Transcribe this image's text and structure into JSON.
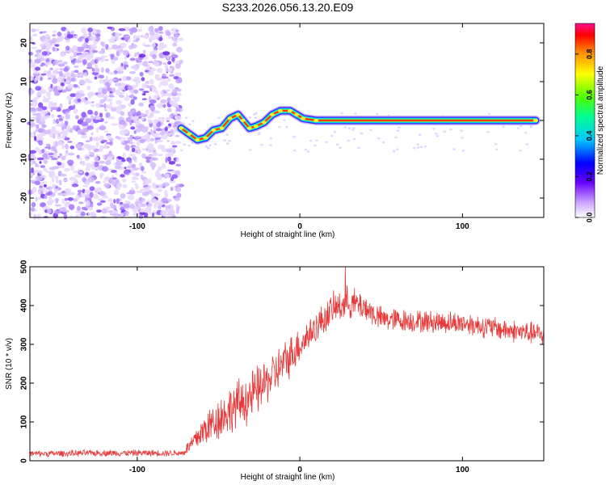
{
  "chart_data": [
    {
      "type": "heatmap",
      "title": "S233.2026.056.13.20.E09",
      "xlabel": "Height of straight line (km)",
      "ylabel": "Frequency (Hz)",
      "xlim": [
        -166,
        150
      ],
      "ylim": [
        -25,
        25
      ],
      "xticks": [
        -100,
        0,
        100
      ],
      "yticks": [
        -20,
        -10,
        0,
        10,
        20
      ],
      "colorbar": {
        "label": "Normalized spectral amplitude",
        "range": [
          0,
          0.95
        ],
        "ticks": [
          0.0,
          0.2,
          0.4,
          0.6,
          0.8
        ]
      },
      "noise_region": {
        "x_from": -166,
        "x_to": -73,
        "freq_from": -25,
        "freq_to": 24,
        "amplitude": "~0.05-0.2"
      },
      "ridge_track": [
        {
          "x": -73,
          "freq": -2
        },
        {
          "x": -68,
          "freq": -3.5
        },
        {
          "x": -63,
          "freq": -5
        },
        {
          "x": -58,
          "freq": -4.5
        },
        {
          "x": -53,
          "freq": -2.5
        },
        {
          "x": -48,
          "freq": -2
        },
        {
          "x": -43,
          "freq": 0.5
        },
        {
          "x": -38,
          "freq": 1.5
        },
        {
          "x": -35,
          "freq": 0
        },
        {
          "x": -31,
          "freq": -2
        },
        {
          "x": -27,
          "freq": -1.5
        },
        {
          "x": -22,
          "freq": -0.5
        },
        {
          "x": -17,
          "freq": 1.5
        },
        {
          "x": -12,
          "freq": 2.5
        },
        {
          "x": -6,
          "freq": 2.5
        },
        {
          "x": -2,
          "freq": 1.5
        },
        {
          "x": 2,
          "freq": 0.5
        },
        {
          "x": 10,
          "freq": 0
        },
        {
          "x": 145,
          "freq": 0
        }
      ]
    },
    {
      "type": "line",
      "xlabel": "Height of straight line (km)",
      "ylabel": "SNR (10 * v/v)",
      "xlim": [
        -166,
        150
      ],
      "ylim": [
        0,
        500
      ],
      "xticks": [
        -100,
        0,
        100
      ],
      "yticks": [
        0,
        100,
        200,
        300,
        400,
        500
      ],
      "series": [
        {
          "name": "SNR",
          "color": "#e83a3a",
          "envelope": [
            {
              "x": -166,
              "mean": 18,
              "spread": 8
            },
            {
              "x": -120,
              "mean": 20,
              "spread": 8
            },
            {
              "x": -72,
              "mean": 20,
              "spread": 8
            },
            {
              "x": -66,
              "mean": 45,
              "spread": 25
            },
            {
              "x": -60,
              "mean": 75,
              "spread": 40
            },
            {
              "x": -50,
              "mean": 110,
              "spread": 55
            },
            {
              "x": -40,
              "mean": 140,
              "spread": 60
            },
            {
              "x": -30,
              "mean": 165,
              "spread": 65
            },
            {
              "x": -20,
              "mean": 205,
              "spread": 55
            },
            {
              "x": -10,
              "mean": 250,
              "spread": 55
            },
            {
              "x": 0,
              "mean": 300,
              "spread": 45
            },
            {
              "x": 10,
              "mean": 345,
              "spread": 40
            },
            {
              "x": 20,
              "mean": 390,
              "spread": 40
            },
            {
              "x": 30,
              "mean": 410,
              "spread": 40
            },
            {
              "x": 40,
              "mean": 395,
              "spread": 35
            },
            {
              "x": 50,
              "mean": 365,
              "spread": 30
            },
            {
              "x": 70,
              "mean": 360,
              "spread": 28
            },
            {
              "x": 100,
              "mean": 355,
              "spread": 28
            },
            {
              "x": 130,
              "mean": 335,
              "spread": 28
            },
            {
              "x": 150,
              "mean": 325,
              "spread": 28
            }
          ],
          "peak": {
            "x": 28,
            "value": 500
          }
        }
      ]
    }
  ]
}
